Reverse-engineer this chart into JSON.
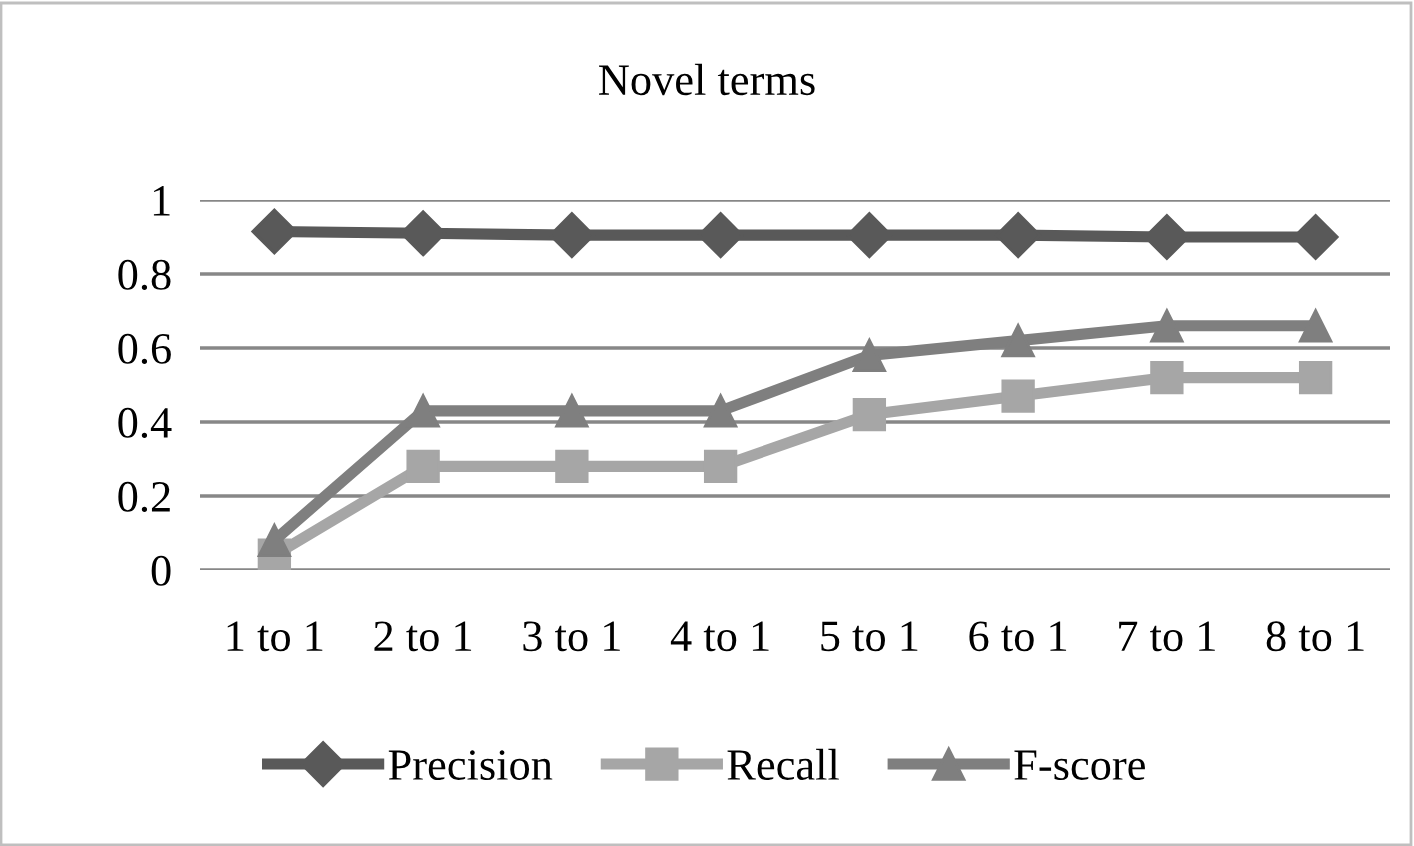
{
  "chart_data": {
    "type": "line",
    "title": "Novel terms",
    "categories": [
      "1 to 1",
      "2 to 1",
      "3 to 1",
      "4 to 1",
      "5 to 1",
      "6 to 1",
      "7 to 1",
      "8 to 1"
    ],
    "series": [
      {
        "name": "Precision",
        "color": "#595959",
        "marker": "diamond",
        "values": [
          0.915,
          0.91,
          0.905,
          0.905,
          0.905,
          0.905,
          0.9,
          0.9
        ]
      },
      {
        "name": "Recall",
        "color": "#a6a6a6",
        "marker": "square",
        "values": [
          0.04,
          0.28,
          0.28,
          0.28,
          0.42,
          0.47,
          0.52,
          0.52
        ]
      },
      {
        "name": "F-score",
        "color": "#7f7f7f",
        "marker": "triangle",
        "values": [
          0.08,
          0.43,
          0.43,
          0.43,
          0.58,
          0.62,
          0.66,
          0.66
        ]
      }
    ],
    "ylim": [
      0,
      1
    ],
    "yticks": [
      0,
      0.2,
      0.4,
      0.6,
      0.8,
      1
    ],
    "grid": "y",
    "legend": "bottom",
    "line_style": "solid"
  }
}
